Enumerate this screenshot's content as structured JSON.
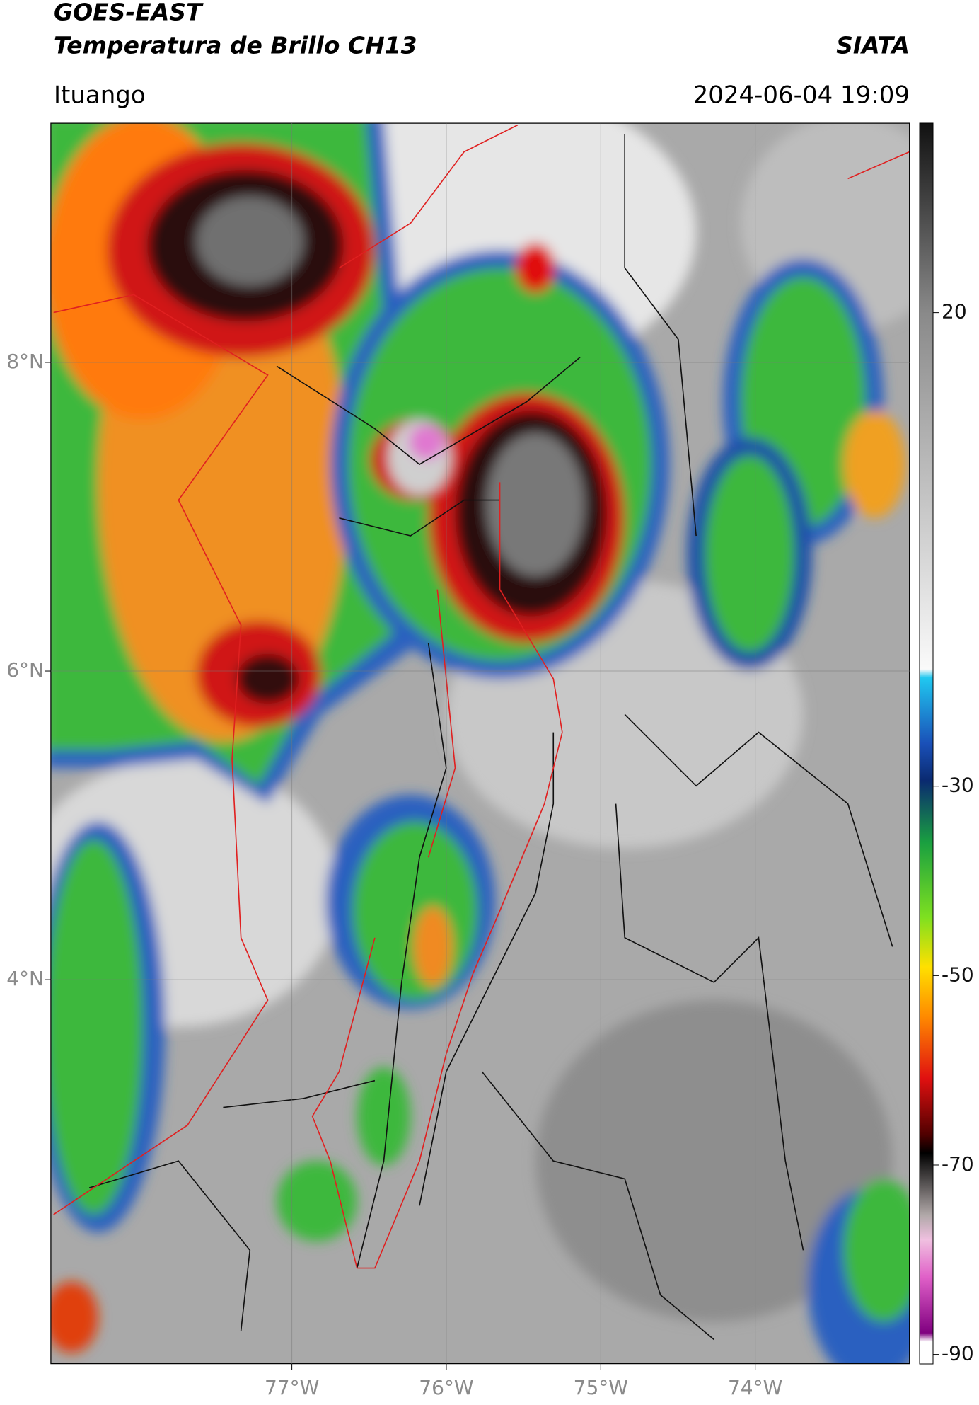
{
  "header": {
    "title": "GOES-EAST",
    "subtitle": "Temperatura de Brillo CH13",
    "agency": "SIATA",
    "location": "Ituango",
    "datetime": "2024-06-04 19:09"
  },
  "map": {
    "xlim": [
      -78.56,
      -73.0
    ],
    "ylim": [
      1.51,
      9.55
    ],
    "xticks": [
      {
        "value": -77,
        "label": "77°W"
      },
      {
        "value": -76,
        "label": "76°W"
      },
      {
        "value": -75,
        "label": "75°W"
      },
      {
        "value": -74,
        "label": "74°W"
      }
    ],
    "yticks": [
      {
        "value": 8,
        "label": "8°N"
      },
      {
        "value": 6,
        "label": "6°N"
      },
      {
        "value": 4,
        "label": "4°N"
      }
    ],
    "grid": true
  },
  "colorbar": {
    "lim": [
      -91,
      40
    ],
    "ticks": [
      20,
      -30,
      -50,
      -70,
      -90
    ]
  }
}
